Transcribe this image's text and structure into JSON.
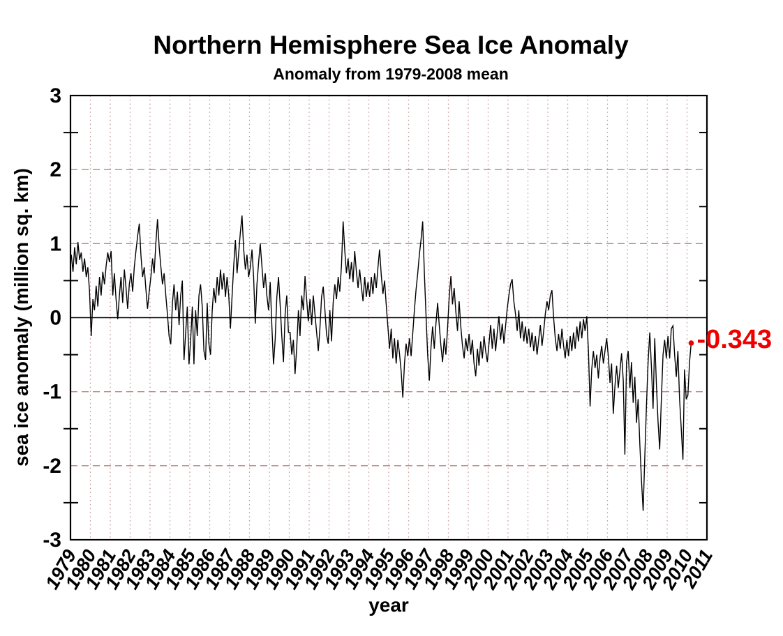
{
  "page": {
    "background": "#ffffff"
  },
  "chart_data": {
    "type": "line",
    "title": "Northern Hemisphere Sea Ice Anomaly",
    "subtitle": "Anomaly from 1979-2008 mean",
    "xlabel": "year",
    "ylabel": "sea ice anomaly (million sq. km)",
    "x_axis": {
      "min": 1979,
      "max": 2011,
      "tick_labels": [
        "1979",
        "1980",
        "1981",
        "1982",
        "1983",
        "1984",
        "1985",
        "1986",
        "1987",
        "1988",
        "1989",
        "1990",
        "1991",
        "1992",
        "1993",
        "1994",
        "1995",
        "1996",
        "1997",
        "1998",
        "1999",
        "2000",
        "2001",
        "2002",
        "2003",
        "2004",
        "2005",
        "2006",
        "2007",
        "2008",
        "2009",
        "2010",
        "2011"
      ]
    },
    "y_axis": {
      "min": -3,
      "max": 3,
      "tick_values": [
        3,
        2,
        1,
        0,
        -1,
        -2,
        -3
      ],
      "tick_labels": [
        "3",
        "2",
        "1",
        "0",
        "-1",
        "-2",
        "-3"
      ],
      "minor_tick_values": [
        2.5,
        1.5,
        0.5,
        -0.5,
        -1.5,
        -2.5
      ],
      "dashed_gridlines_y": [
        2,
        1,
        -1,
        -2
      ],
      "zero_line_y": 0
    },
    "grid": {
      "vertical_dotted_per_year": true,
      "legend": "none"
    },
    "series": [
      {
        "name": "sea-ice-anomaly",
        "start_year": 1979,
        "samples_per_year": 12,
        "values_by_year": [
          [
            0.85,
            0.62,
            0.95,
            0.72,
            1.02,
            0.78,
            0.88,
            0.62,
            0.8,
            0.55,
            0.68,
            0.35
          ],
          [
            -0.25,
            0.25,
            0.1,
            0.43,
            0.15,
            0.55,
            0.3,
            0.62,
            0.45,
            0.7,
            0.88,
            0.75
          ],
          [
            0.9,
            0.3,
            0.6,
            0.25,
            -0.02,
            0.3,
            0.55,
            0.2,
            0.65,
            0.4,
            0.12,
            0.45
          ],
          [
            0.6,
            0.35,
            0.68,
            0.9,
            1.1,
            1.27,
            0.85,
            0.55,
            0.68,
            0.38,
            0.12,
            0.35
          ],
          [
            0.55,
            0.8,
            0.6,
            1.0,
            1.33,
            0.95,
            0.7,
            0.45,
            0.6,
            0.3,
            0.05,
            -0.25
          ],
          [
            -0.36,
            0.2,
            0.45,
            0.1,
            0.35,
            -0.1,
            0.3,
            0.5,
            -0.57,
            -0.2,
            0.15,
            -0.63
          ],
          [
            -0.3,
            0.15,
            -0.63,
            0.1,
            -0.25,
            0.3,
            0.45,
            0.15,
            -0.45,
            -0.57,
            0.2,
            -0.35
          ],
          [
            -0.5,
            0.1,
            0.4,
            0.2,
            0.55,
            0.3,
            0.65,
            0.38,
            0.6,
            0.28,
            0.55,
            0.3
          ],
          [
            -0.15,
            0.3,
            0.7,
            1.05,
            0.6,
            0.88,
            1.15,
            1.38,
            0.92,
            0.65,
            0.85,
            0.55
          ],
          [
            0.68,
            0.92,
            0.55,
            -0.08,
            0.45,
            0.75,
            1.0,
            0.7,
            0.4,
            0.6,
            0.3,
            0.1
          ],
          [
            0.48,
            -0.12,
            -0.63,
            -0.3,
            0.28,
            0.55,
            0.18,
            -0.25,
            -0.6,
            0.05,
            0.3,
            -0.2
          ],
          [
            -0.2,
            -0.5,
            -0.3,
            -0.76,
            -0.4,
            0.1,
            -0.25,
            0.3,
            0.1,
            0.56,
            0.25,
            -0.05
          ],
          [
            0.25,
            -0.1,
            0.3,
            0.05,
            -0.2,
            -0.45,
            -0.15,
            0.28,
            0.42,
            0.1,
            -0.22,
            -0.35
          ],
          [
            0.1,
            -0.32,
            0.2,
            0.45,
            0.25,
            0.55,
            0.35,
            0.7,
            1.3,
            0.9,
            0.6,
            0.8
          ],
          [
            0.52,
            0.75,
            0.48,
            0.9,
            0.62,
            0.4,
            0.65,
            0.42,
            0.22,
            0.55,
            0.28,
            0.48
          ],
          [
            0.28,
            0.55,
            0.32,
            0.6,
            0.4,
            0.68,
            0.92,
            0.58,
            0.32,
            0.5,
            0.18,
            -0.12
          ],
          [
            -0.42,
            -0.15,
            -0.55,
            -0.28,
            -0.62,
            -0.3,
            -0.48,
            -0.72,
            -1.08,
            -0.62,
            -0.35,
            -0.52
          ],
          [
            -0.28,
            -0.52,
            -0.22,
            0.1,
            0.38,
            0.6,
            0.85,
            1.05,
            1.3,
            0.6,
            0.05,
            -0.5
          ],
          [
            -0.85,
            -0.4,
            -0.12,
            -0.42,
            -0.08,
            0.2,
            -0.1,
            -0.38,
            -0.6,
            -0.28,
            -0.5,
            -0.15
          ],
          [
            0.28,
            0.56,
            0.18,
            0.4,
            0.08,
            -0.18,
            0.22,
            -0.12,
            -0.38,
            -0.55,
            -0.28,
            -0.45
          ],
          [
            -0.22,
            -0.5,
            -0.3,
            -0.62,
            -0.79,
            -0.42,
            -0.65,
            -0.32,
            -0.55,
            -0.25,
            -0.45,
            -0.6
          ],
          [
            -0.35,
            -0.1,
            -0.42,
            -0.15,
            -0.45,
            -0.2,
            0.02,
            -0.3,
            -0.08,
            -0.35,
            -0.12,
            0.12
          ],
          [
            0.3,
            0.45,
            0.52,
            0.22,
            0.05,
            -0.18,
            0.1,
            -0.28,
            -0.05,
            -0.32,
            -0.12,
            -0.35
          ],
          [
            -0.15,
            -0.4,
            -0.2,
            -0.45,
            -0.25,
            -0.5,
            -0.3,
            -0.1,
            -0.38,
            -0.18,
            0.05,
            0.22
          ],
          [
            0.1,
            0.3,
            0.37,
            0.0,
            -0.28,
            -0.45,
            -0.22,
            -0.42,
            -0.15,
            -0.38,
            -0.55,
            -0.3
          ],
          [
            -0.52,
            -0.25,
            -0.45,
            -0.2,
            -0.42,
            -0.12,
            -0.32,
            -0.05,
            -0.28,
            -0.02,
            -0.18,
            0.02
          ],
          [
            -0.45,
            -1.2,
            -0.7,
            -0.45,
            -0.68,
            -0.5,
            -0.82,
            -0.55,
            -0.38,
            -0.62,
            -0.45,
            -0.28
          ],
          [
            -0.52,
            -0.88,
            -0.62,
            -1.3,
            -0.92,
            -0.65,
            -0.95,
            -0.72,
            -0.48,
            -0.85,
            -1.85,
            -0.6
          ],
          [
            -0.45,
            -0.95,
            -0.6,
            -1.15,
            -0.8,
            -1.42,
            -1.1,
            -1.7,
            -2.2,
            -2.61,
            -1.9,
            -1.2
          ],
          [
            -0.6,
            -0.2,
            -0.65,
            -1.23,
            -0.28,
            -0.9,
            -1.4,
            -1.78,
            -1.1,
            -0.5,
            -0.3,
            -0.55
          ],
          [
            -0.25,
            -0.55,
            -0.15,
            -0.11,
            -0.5,
            -0.8,
            -0.45,
            -1.1,
            -1.5,
            -1.92,
            -0.7,
            -1.1
          ],
          [
            -1.05,
            -0.6,
            -0.343
          ]
        ]
      }
    ],
    "annotation": {
      "label": "-0.343",
      "value": -0.343,
      "marker": "red-dot"
    },
    "colors": {
      "line": "#000000",
      "dotted_grid": "#c49c9c",
      "dashed_grid": "#c08080",
      "axis": "#000000",
      "annotation": "#ee0000",
      "background": "#ffffff"
    }
  }
}
